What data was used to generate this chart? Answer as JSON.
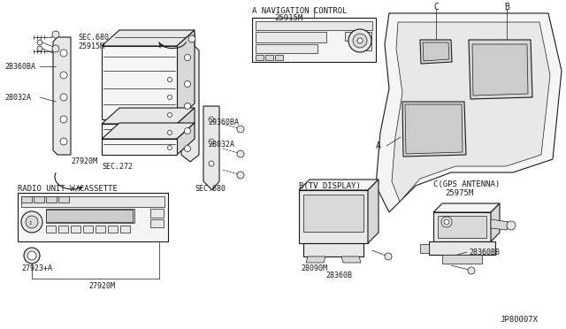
{
  "bg_color": "#ffffff",
  "lc": "#1a1a1a",
  "fc_light": "#f5f5f5",
  "fc_mid": "#e8e8e8",
  "fc_dark": "#d8d8d8",
  "labels": {
    "sec680_top": "SEC.680",
    "part_25915M": "25915M",
    "part_2B360BA": "2B360BA",
    "part_28032A_1": "28032A",
    "part_27920M_1": "27920M",
    "sec272": "SEC.272",
    "nav_title": "A NAVIGATION CONTROL",
    "nav_part": "25915M",
    "radio_title": "RADIO UNIT W/CASSETTE",
    "part_29360BA": "29360BA",
    "part_28032A_2": "28032A",
    "sec680_2": "SEC.680",
    "part_27923A": "27923+A",
    "part_27920M_2": "27920M",
    "b_tv": "B(TV DISPLAY)",
    "part_28090M": "28090M",
    "part_28360B": "28360B",
    "c_gps": "C(GPS ANTENNA)",
    "part_25975M": "25975M",
    "part_28360BB": "28360BB",
    "lbl_A": "A",
    "lbl_B": "B",
    "lbl_C": "C",
    "diagram_id": "JP80007X"
  },
  "fig_w": 6.4,
  "fig_h": 3.72,
  "dpi": 100
}
